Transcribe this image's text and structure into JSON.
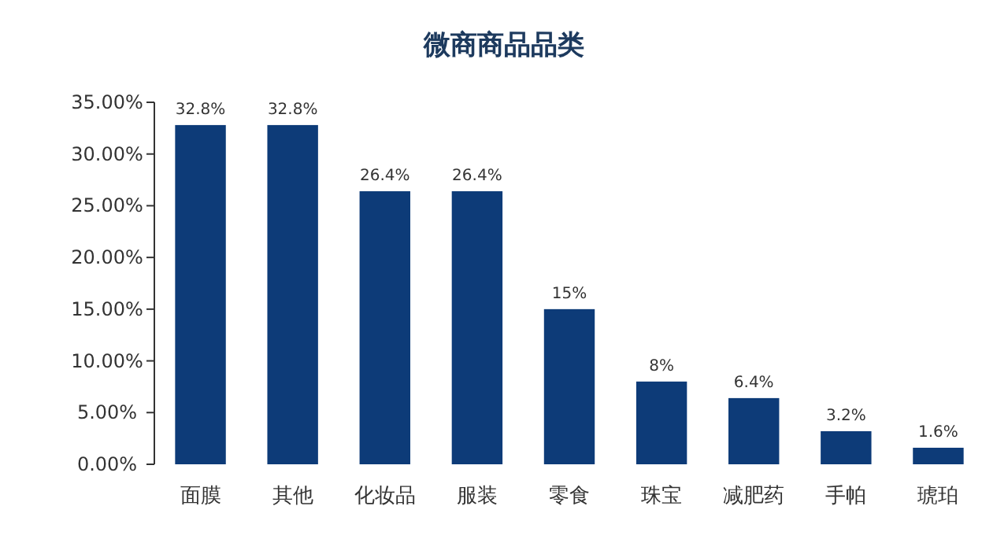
{
  "chart_data": {
    "type": "bar",
    "title": "微商商品品类",
    "categories": [
      "面膜",
      "其他",
      "化妆品",
      "服装",
      "零食",
      "珠宝",
      "减肥药",
      "手帕",
      "琥珀"
    ],
    "values": [
      32.8,
      32.8,
      26.4,
      26.4,
      15,
      8,
      6.4,
      3.2,
      1.6
    ],
    "value_labels": [
      "32.8%",
      "32.8%",
      "26.4%",
      "26.4%",
      "15%",
      "8%",
      "6.4%",
      "3.2%",
      "1.6%"
    ],
    "color": "#0d3b78",
    "ylim": [
      0,
      35
    ],
    "yticks": [
      {
        "value": 0,
        "label": "0.00%"
      },
      {
        "value": 5,
        "label": "5.00%"
      },
      {
        "value": 10,
        "label": "10.00%"
      },
      {
        "value": 15,
        "label": "15.00%"
      },
      {
        "value": 20,
        "label": "20.00%"
      },
      {
        "value": 25,
        "label": "25.00%"
      },
      {
        "value": 30,
        "label": "30.00%"
      },
      {
        "value": 35,
        "label": "35.00%"
      }
    ]
  }
}
